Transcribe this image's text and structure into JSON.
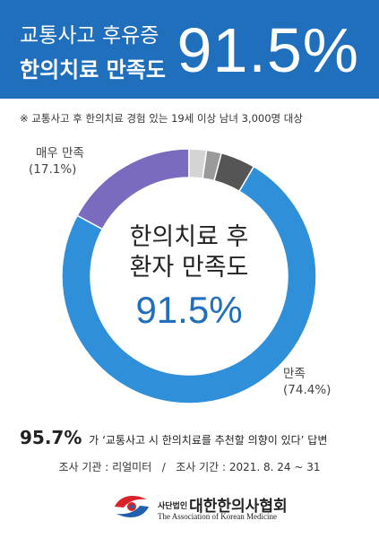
{
  "header": {
    "line1": "교통사고 후유증",
    "line2": "한의치료 만족도",
    "big_value": "91.5%"
  },
  "note": "※ 교통사고 후 한의치료 경험 있는 19세 이상 남녀 3,000명 대상",
  "chart_data": {
    "type": "pie",
    "donut": true,
    "categories": [
      "매우 만족",
      "",
      "",
      "",
      "만족"
    ],
    "values": [
      17.1,
      2.2,
      1.9,
      4.4,
      74.4
    ],
    "colors": [
      "#7b6bbf",
      "#d4d4d4",
      "#9a9a9a",
      "#555555",
      "#2f8fd8"
    ],
    "labels": {
      "very_satisfied": {
        "name": "매우 만족",
        "value": "(17.1%)"
      },
      "satisfied": {
        "name": "만족",
        "value": "(74.4%)"
      }
    },
    "center": {
      "line1": "한의치료 후",
      "line2": "환자 만족도",
      "value": "91.5%"
    }
  },
  "recommend": {
    "value": "95.7%",
    "text": "가 ‘교통사고 시 한의치료를 추천할 의향이 있다’ 답변"
  },
  "survey": {
    "agency": "조사 기관 : 리얼미터",
    "separator": "/",
    "period": "조사 기간 : 2021. 8. 24 ~ 31"
  },
  "org": {
    "prefix": "사단법인",
    "name": "대한한의사협회",
    "english": "The Association of Korean Medicine"
  }
}
